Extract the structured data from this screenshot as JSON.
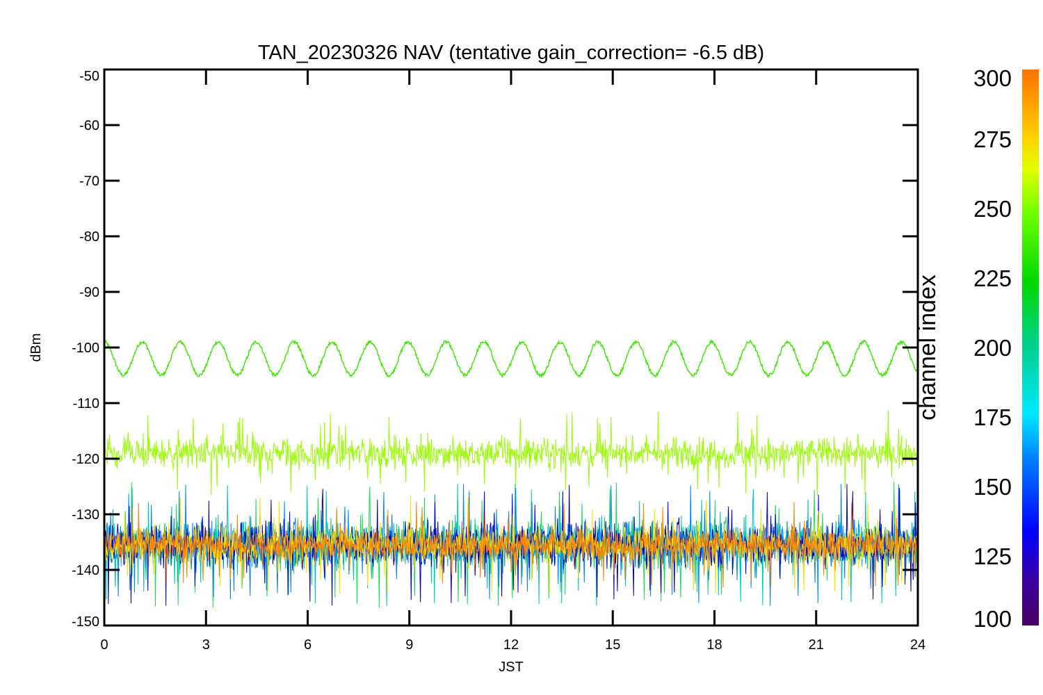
{
  "chart_data": {
    "type": "line",
    "title": "TAN_20230326 NAV (tentative gain_correction= -6.5 dB)",
    "xlabel": "JST",
    "ylabel": "dBm",
    "xlim": [
      0,
      24
    ],
    "ylim": [
      -150,
      -50
    ],
    "x_ticks": [
      "0",
      "3",
      "6",
      "9",
      "12",
      "15",
      "18",
      "21",
      "24"
    ],
    "y_ticks": [
      "-50",
      "-60",
      "-70",
      "-80",
      "-90",
      "-100",
      "-110",
      "-120",
      "-130",
      "-140",
      "-150"
    ],
    "grid": false,
    "colorbar": {
      "label": "channel index",
      "range": [
        100,
        300
      ],
      "ticks": [
        "300",
        "275",
        "250",
        "225",
        "200",
        "175",
        "150",
        "125",
        "100"
      ]
    },
    "series": [
      {
        "channel": 240,
        "color": "#3ee800",
        "mean": -102,
        "amplitude": 3,
        "period_hours": 1.12,
        "noise": 0.3
      },
      {
        "channel": 262,
        "color": "#99ff00",
        "mean": -119,
        "spread": 3.5
      },
      {
        "channel": 230,
        "color": "#1ed85a",
        "mean": -135.5,
        "spread": 5.2
      },
      {
        "channel": 200,
        "color": "#00c0c0",
        "mean": -135.5,
        "spread": 5
      },
      {
        "channel": 165,
        "color": "#0080ff",
        "mean": -135.5,
        "spread": 5
      },
      {
        "channel": 140,
        "color": "#0000c0",
        "mean": -135.5,
        "spread": 5
      },
      {
        "channel": 275,
        "color": "#ffe000",
        "mean": -135.5,
        "spread": 4
      },
      {
        "channel": 300,
        "color": "#ff8000",
        "mean": -135.5,
        "spread": 3.5
      }
    ]
  }
}
